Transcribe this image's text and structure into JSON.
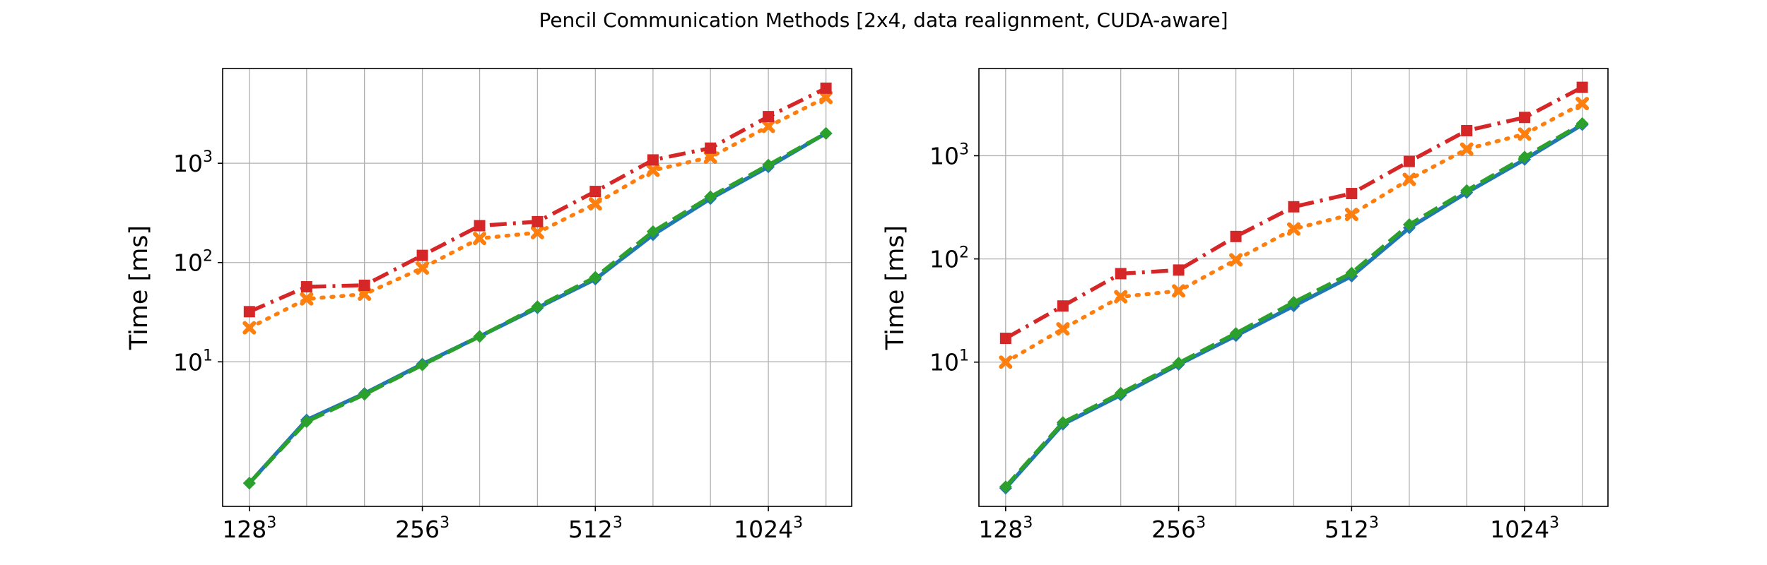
{
  "figure": {
    "title": "Pencil Communication Methods [2x4, data realignment, CUDA-aware]"
  },
  "chart_data": [
    {
      "type": "line",
      "title": "",
      "xlabel": "",
      "ylabel": "Time [ms]",
      "yscale": "log",
      "ylim": [
        0.35,
        9000
      ],
      "y_ticks": [
        {
          "value": 10,
          "base": "10",
          "exp": "1"
        },
        {
          "value": 100,
          "base": "10",
          "exp": "2"
        },
        {
          "value": 1000,
          "base": "10",
          "exp": "3"
        }
      ],
      "x": [
        128,
        161,
        203,
        256,
        322,
        406,
        512,
        645,
        812,
        1024,
        1290
      ],
      "xlim": [
        115,
        1430
      ],
      "x_ticks": [
        {
          "value": 128,
          "base": "128",
          "exp": "3"
        },
        {
          "value": 256,
          "base": "256",
          "exp": "3"
        },
        {
          "value": 512,
          "base": "512",
          "exp": "3"
        },
        {
          "value": 1024,
          "base": "1024",
          "exp": "3"
        }
      ],
      "x_gridlines": [
        128,
        161,
        203,
        256,
        322,
        406,
        512,
        645,
        812,
        1024,
        1290
      ],
      "grid": true,
      "series": [
        {
          "color": "#1f77b4",
          "linestyle": "solid",
          "marker": "diamond",
          "values": [
            0.6,
            2.6,
            4.8,
            9.5,
            18,
            35,
            68,
            190,
            440,
            920,
            2000
          ]
        },
        {
          "color": "#ff7f0e",
          "linestyle": "dotted",
          "marker": "x",
          "values": [
            22,
            43,
            48,
            88,
            175,
            200,
            390,
            850,
            1150,
            2350,
            4600
          ]
        },
        {
          "color": "#2ca02c",
          "linestyle": "dashed",
          "marker": "diamond",
          "values": [
            0.6,
            2.5,
            4.7,
            9.3,
            18,
            36,
            71,
            205,
            460,
            960,
            2000
          ]
        },
        {
          "color": "#d62728",
          "linestyle": "dashdot",
          "marker": "square",
          "values": [
            32,
            57,
            59,
            118,
            235,
            258,
            520,
            1080,
            1420,
            2950,
            5700
          ]
        }
      ]
    },
    {
      "type": "line",
      "title": "",
      "xlabel": "",
      "ylabel": "Time [ms]",
      "yscale": "log",
      "ylim": [
        0.4,
        7000
      ],
      "y_ticks": [
        {
          "value": 10,
          "base": "10",
          "exp": "1"
        },
        {
          "value": 100,
          "base": "10",
          "exp": "2"
        },
        {
          "value": 1000,
          "base": "10",
          "exp": "3"
        }
      ],
      "x": [
        128,
        161,
        203,
        256,
        322,
        406,
        512,
        645,
        812,
        1024,
        1290
      ],
      "xlim": [
        115,
        1430
      ],
      "x_ticks": [
        {
          "value": 128,
          "base": "128",
          "exp": "3"
        },
        {
          "value": 256,
          "base": "256",
          "exp": "3"
        },
        {
          "value": 512,
          "base": "512",
          "exp": "3"
        },
        {
          "value": 1024,
          "base": "1024",
          "exp": "3"
        }
      ],
      "x_gridlines": [
        128,
        161,
        203,
        256,
        322,
        406,
        512,
        645,
        812,
        1024,
        1290
      ],
      "grid": true,
      "series": [
        {
          "color": "#1f77b4",
          "linestyle": "solid",
          "marker": "diamond",
          "values": [
            0.6,
            2.5,
            4.8,
            9.5,
            18,
            35,
            68,
            200,
            440,
            920,
            2000
          ]
        },
        {
          "color": "#ff7f0e",
          "linestyle": "dotted",
          "marker": "x",
          "values": [
            10,
            21,
            43,
            49,
            98,
            195,
            270,
            590,
            1160,
            1620,
            3200
          ]
        },
        {
          "color": "#2ca02c",
          "linestyle": "dashed",
          "marker": "diamond",
          "values": [
            0.62,
            2.6,
            5.0,
            9.8,
            19,
            38,
            73,
            215,
            460,
            970,
            2050
          ]
        },
        {
          "color": "#d62728",
          "linestyle": "dashdot",
          "marker": "square",
          "values": [
            17,
            35,
            72,
            78,
            165,
            320,
            430,
            880,
            1750,
            2350,
            4600
          ]
        }
      ]
    }
  ]
}
